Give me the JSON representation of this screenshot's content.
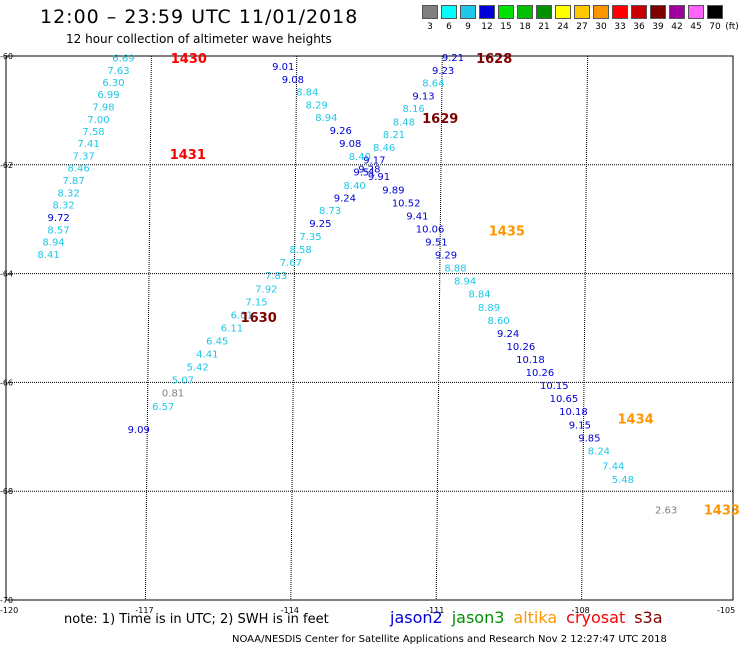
{
  "title": "12:00 – 23:59 UTC 11/01/2018",
  "subtitle": "12 hour collection of altimeter wave heights",
  "legend": {
    "unit": "(ft)",
    "bins": [
      {
        "label": "3",
        "color": "#808080"
      },
      {
        "label": "6",
        "color": "#00ffff"
      },
      {
        "label": "9",
        "color": "#1ec8e6"
      },
      {
        "label": "12",
        "color": "#0000d8"
      },
      {
        "label": "15",
        "color": "#00e100"
      },
      {
        "label": "18",
        "color": "#00c000"
      },
      {
        "label": "21",
        "color": "#009000"
      },
      {
        "label": "24",
        "color": "#ffff00"
      },
      {
        "label": "27",
        "color": "#ffc800"
      },
      {
        "label": "30",
        "color": "#ff9600"
      },
      {
        "label": "33",
        "color": "#ff0000"
      },
      {
        "label": "36",
        "color": "#c80000"
      },
      {
        "label": "39",
        "color": "#800000"
      },
      {
        "label": "42",
        "color": "#a000a0"
      },
      {
        "label": "45",
        "color": "#ff64ff"
      },
      {
        "label": "70",
        "color": "#000000"
      }
    ]
  },
  "map": {
    "lon_min": -120,
    "lon_max": -105,
    "lat_min": -70,
    "lat_max": -60,
    "lon_ticks": [
      -117,
      -114,
      -111,
      -108
    ],
    "lat_ticks": [
      -62,
      -64,
      -66,
      -68
    ],
    "edge_labels": {
      "left_top": "-60",
      "left_bottom": "-70",
      "bottom_left": "-120",
      "bottom_right": "-105"
    }
  },
  "tracks": [
    {
      "color": "#1ec8e6",
      "points": [
        {
          "lon": -117.6,
          "lat": -60.03,
          "v": "6.69"
        },
        {
          "lon": -117.7,
          "lat": -60.26,
          "v": "7.63"
        },
        {
          "lon": -117.8,
          "lat": -60.48,
          "v": "6.30"
        },
        {
          "lon": -117.9,
          "lat": -60.7,
          "v": "6.99"
        },
        {
          "lon": -118.0,
          "lat": -60.93,
          "v": "7.98"
        },
        {
          "lon": -118.1,
          "lat": -61.16,
          "v": "7.00"
        },
        {
          "lon": -118.2,
          "lat": -61.38,
          "v": "7.58"
        },
        {
          "lon": -118.3,
          "lat": -61.6,
          "v": "7.41"
        },
        {
          "lon": -118.4,
          "lat": -61.83,
          "v": "7.37"
        },
        {
          "lon": -118.5,
          "lat": -62.05,
          "v": "8.46"
        },
        {
          "lon": -118.6,
          "lat": -62.28,
          "v": "7.87"
        },
        {
          "lon": -118.7,
          "lat": -62.51,
          "v": "8.32"
        },
        {
          "lon": -118.8,
          "lat": -62.73,
          "v": "8.32"
        }
      ]
    },
    {
      "color": "#0000d8",
      "points": [
        {
          "lon": -118.9,
          "lat": -62.96,
          "v": "9.72"
        }
      ]
    },
    {
      "color": "#1ec8e6",
      "points": [
        {
          "lon": -118.9,
          "lat": -63.19,
          "v": "8.57"
        },
        {
          "lon": -119.0,
          "lat": -63.41,
          "v": "8.94"
        },
        {
          "lon": -119.1,
          "lat": -63.64,
          "v": "8.41"
        }
      ]
    },
    {
      "color": "#0000d8",
      "points": [
        {
          "lon": -114.3,
          "lat": -60.18,
          "v": "9.01"
        },
        {
          "lon": -114.1,
          "lat": -60.42,
          "v": "9.08"
        }
      ]
    },
    {
      "color": "#1ec8e6",
      "points": [
        {
          "lon": -113.8,
          "lat": -60.65,
          "v": "8.84"
        },
        {
          "lon": -113.6,
          "lat": -60.89,
          "v": "8.29"
        },
        {
          "lon": -113.4,
          "lat": -61.12,
          "v": "8.94"
        }
      ]
    },
    {
      "color": "#0000d8",
      "points": [
        {
          "lon": -113.1,
          "lat": -61.36,
          "v": "9.26"
        },
        {
          "lon": -112.9,
          "lat": -61.6,
          "v": "9.08"
        }
      ]
    },
    {
      "color": "#1ec8e6",
      "points": [
        {
          "lon": -112.7,
          "lat": -61.84,
          "v": "8.40"
        }
      ]
    },
    {
      "color": "#0000d8",
      "points": [
        {
          "lon": -112.5,
          "lat": -62.07,
          "v": "9.28"
        }
      ]
    },
    {
      "color": "#0000d8",
      "points": [
        {
          "lon": -110.8,
          "lat": -60.02,
          "v": "9.21"
        },
        {
          "lon": -111.0,
          "lat": -60.26,
          "v": "9.23"
        }
      ]
    },
    {
      "color": "#1ec8e6",
      "points": [
        {
          "lon": -111.2,
          "lat": -60.49,
          "v": "8.64"
        }
      ]
    },
    {
      "color": "#0000d8",
      "points": [
        {
          "lon": -111.4,
          "lat": -60.73,
          "v": "9.13"
        }
      ]
    },
    {
      "color": "#1ec8e6",
      "points": [
        {
          "lon": -111.6,
          "lat": -60.96,
          "v": "8.16"
        },
        {
          "lon": -111.8,
          "lat": -61.2,
          "v": "8.48"
        },
        {
          "lon": -112.0,
          "lat": -61.43,
          "v": "8.21"
        },
        {
          "lon": -112.2,
          "lat": -61.67,
          "v": "8.46"
        }
      ]
    },
    {
      "color": "#0000d8",
      "points": [
        {
          "lon": -112.4,
          "lat": -61.9,
          "v": "9.17"
        },
        {
          "lon": -112.6,
          "lat": -62.12,
          "v": "9.51"
        }
      ]
    },
    {
      "color": "#1ec8e6",
      "points": [
        {
          "lon": -112.8,
          "lat": -62.37,
          "v": "8.40"
        }
      ]
    },
    {
      "color": "#0000d8",
      "points": [
        {
          "lon": -113.0,
          "lat": -62.6,
          "v": "9.24"
        }
      ]
    },
    {
      "color": "#1ec8e6",
      "points": [
        {
          "lon": -113.3,
          "lat": -62.83,
          "v": "8.73"
        }
      ]
    },
    {
      "color": "#0000d8",
      "points": [
        {
          "lon": -113.5,
          "lat": -63.07,
          "v": "9.25"
        }
      ]
    },
    {
      "color": "#1ec8e6",
      "points": [
        {
          "lon": -113.7,
          "lat": -63.31,
          "v": "7.35"
        },
        {
          "lon": -113.9,
          "lat": -63.55,
          "v": "8.58"
        },
        {
          "lon": -114.1,
          "lat": -63.79,
          "v": "7.67"
        },
        {
          "lon": -114.4,
          "lat": -64.03,
          "v": "7.83"
        },
        {
          "lon": -114.6,
          "lat": -64.27,
          "v": "7.92"
        },
        {
          "lon": -114.8,
          "lat": -64.51,
          "v": "7.15"
        },
        {
          "lon": -115.1,
          "lat": -64.75,
          "v": "6.01"
        },
        {
          "lon": -115.3,
          "lat": -64.99,
          "v": "6.11"
        },
        {
          "lon": -115.6,
          "lat": -65.23,
          "v": "6.45"
        },
        {
          "lon": -115.8,
          "lat": -65.47,
          "v": "4.41"
        },
        {
          "lon": -116.0,
          "lat": -65.71,
          "v": "5.42"
        },
        {
          "lon": -116.3,
          "lat": -65.95,
          "v": "5.07"
        }
      ]
    },
    {
      "color": "#808080",
      "points": [
        {
          "lon": -116.5,
          "lat": -66.19,
          "v": "0.81"
        }
      ]
    },
    {
      "color": "#1ec8e6",
      "points": [
        {
          "lon": -116.7,
          "lat": -66.43,
          "v": "6.57"
        }
      ]
    },
    {
      "color": "#0000d8",
      "points": [
        {
          "lon": -117.2,
          "lat": -66.86,
          "v": "9.09"
        },
        {
          "lon": -112.3,
          "lat": -62.21,
          "v": "9.91"
        },
        {
          "lon": -112.0,
          "lat": -62.45,
          "v": "9.89"
        },
        {
          "lon": -111.8,
          "lat": -62.69,
          "v": "10.52"
        },
        {
          "lon": -111.5,
          "lat": -62.93,
          "v": "9.41"
        },
        {
          "lon": -111.3,
          "lat": -63.17,
          "v": "10.06"
        },
        {
          "lon": -111.1,
          "lat": -63.41,
          "v": "9.51"
        },
        {
          "lon": -110.9,
          "lat": -63.65,
          "v": "9.29"
        }
      ]
    },
    {
      "color": "#1ec8e6",
      "points": [
        {
          "lon": -110.7,
          "lat": -63.89,
          "v": "8.88"
        },
        {
          "lon": -110.5,
          "lat": -64.13,
          "v": "8.94"
        },
        {
          "lon": -110.2,
          "lat": -64.37,
          "v": "8.84"
        },
        {
          "lon": -110.0,
          "lat": -64.61,
          "v": "8.89"
        },
        {
          "lon": -109.8,
          "lat": -64.85,
          "v": "8.60"
        }
      ]
    },
    {
      "color": "#0000d8",
      "points": [
        {
          "lon": -109.6,
          "lat": -65.09,
          "v": "9.24"
        },
        {
          "lon": -109.4,
          "lat": -65.33,
          "v": "10.26"
        },
        {
          "lon": -109.2,
          "lat": -65.57,
          "v": "10.18"
        },
        {
          "lon": -109.0,
          "lat": -65.81,
          "v": "10.26"
        },
        {
          "lon": -108.7,
          "lat": -66.05,
          "v": "10.15"
        },
        {
          "lon": -108.5,
          "lat": -66.29,
          "v": "10.65"
        },
        {
          "lon": -108.3,
          "lat": -66.53,
          "v": "10.18"
        },
        {
          "lon": -108.1,
          "lat": -66.77,
          "v": "9.15"
        },
        {
          "lon": -107.9,
          "lat": -67.01,
          "v": "9.85"
        }
      ]
    },
    {
      "color": "#1ec8e6",
      "points": [
        {
          "lon": -107.7,
          "lat": -67.25,
          "v": "8.24"
        },
        {
          "lon": -107.4,
          "lat": -67.53,
          "v": "7.44"
        },
        {
          "lon": -107.2,
          "lat": -67.78,
          "v": "5.48"
        }
      ]
    },
    {
      "color": "#808080",
      "points": [
        {
          "lon": -106.3,
          "lat": -68.34,
          "v": "2.63"
        }
      ]
    }
  ],
  "time_labels": [
    {
      "lon": -116.6,
      "lat": -60.04,
      "text": "1430",
      "color": "#ff0000"
    },
    {
      "lon": -116.6,
      "lat": -61.8,
      "text": "1431",
      "color": "#ff0000"
    },
    {
      "lon": -110.3,
      "lat": -60.04,
      "text": "1628",
      "color": "#800000"
    },
    {
      "lon": -111.4,
      "lat": -61.14,
      "text": "1629",
      "color": "#800000"
    },
    {
      "lon": -115.1,
      "lat": -64.8,
      "text": "1630",
      "color": "#800000"
    },
    {
      "lon": -110.0,
      "lat": -63.21,
      "text": "1435",
      "color": "#ff9600"
    },
    {
      "lon": -107.3,
      "lat": -66.66,
      "text": "1434",
      "color": "#ff9600"
    },
    {
      "lon": -105.5,
      "lat": -68.34,
      "text": "1433",
      "color": "#ff9600"
    }
  ],
  "note": "note: 1) Time is in UTC; 2) SWH is in feet",
  "satellites": [
    {
      "name": "jason2",
      "color": "#0000d8"
    },
    {
      "name": "jason3",
      "color": "#009000"
    },
    {
      "name": "altika",
      "color": "#ff9600"
    },
    {
      "name": "cryosat",
      "color": "#ff0000"
    },
    {
      "name": "s3a",
      "color": "#800000"
    }
  ],
  "footer": "NOAA/NESDIS Center for Satellite Applications and Research    Nov  2 12:27:47 UTC 2018"
}
